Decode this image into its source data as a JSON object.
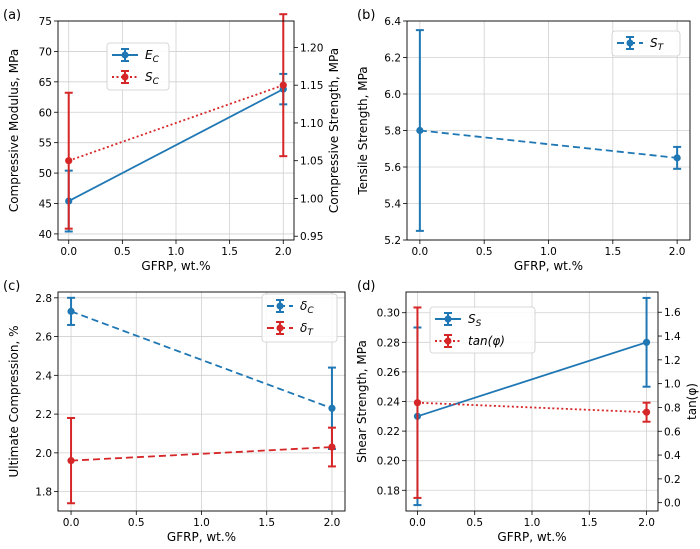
{
  "figure": {
    "background": "#ffffff"
  },
  "colors": {
    "blue": "#1f77b4",
    "red": "#d62728",
    "grid": "#d0d0d0"
  },
  "chart_data": [
    {
      "id": "a",
      "panel_label": "(a)",
      "type": "line",
      "xlabel": "GFRP, wt.%",
      "xlim": [
        -0.1,
        2.1
      ],
      "xticks": [
        0.0,
        0.5,
        1.0,
        1.5,
        2.0
      ],
      "xtick_labels": [
        "0.0",
        "0.5",
        "1.0",
        "1.5",
        "2.0"
      ],
      "ylabel": "Compressive Modulus, MPa",
      "ylim": [
        39,
        75
      ],
      "yticks": [
        40,
        45,
        50,
        55,
        60,
        65,
        70,
        75
      ],
      "ytick_labels": [
        "40",
        "45",
        "50",
        "55",
        "60",
        "65",
        "70",
        "75"
      ],
      "y2label": "Compressive Strength, MPa",
      "y2lim": [
        0.945,
        1.235
      ],
      "y2ticks": [
        0.95,
        1.0,
        1.05,
        1.1,
        1.15,
        1.2
      ],
      "y2tick_labels": [
        "0.95",
        "1.00",
        "1.05",
        "1.10",
        "1.15",
        "1.20"
      ],
      "grid": true,
      "legend_position": "top-center",
      "series": [
        {
          "name": "E_C",
          "legend_main": "E",
          "legend_sub": "C",
          "axis": "left",
          "color": "#1f77b4",
          "style": "solid",
          "x": [
            0,
            2
          ],
          "y": [
            45.4,
            63.8
          ],
          "err": [
            5,
            2.5
          ]
        },
        {
          "name": "S_C",
          "legend_main": "S",
          "legend_sub": "C",
          "axis": "right",
          "color": "#d62728",
          "style": "dotted",
          "x": [
            0,
            2
          ],
          "y": [
            1.05,
            1.15
          ],
          "err": [
            0.09,
            0.094
          ]
        }
      ]
    },
    {
      "id": "b",
      "panel_label": "(b)",
      "type": "line",
      "xlabel": "GFRP, wt.%",
      "xlim": [
        -0.1,
        2.1
      ],
      "xticks": [
        0.0,
        0.5,
        1.0,
        1.5,
        2.0
      ],
      "xtick_labels": [
        "0.0",
        "0.5",
        "1.0",
        "1.5",
        "2.0"
      ],
      "ylabel": "Tensile Strength, MPa",
      "ylim": [
        5.2,
        6.4
      ],
      "yticks": [
        5.2,
        5.4,
        5.6,
        5.8,
        6.0,
        6.2,
        6.4
      ],
      "ytick_labels": [
        "5.2",
        "5.4",
        "5.6",
        "5.8",
        "6.0",
        "6.2",
        "6.4"
      ],
      "grid": true,
      "legend_position": "top-right",
      "series": [
        {
          "name": "S_T",
          "legend_main": "S",
          "legend_sub": "T",
          "axis": "left",
          "color": "#1f77b4",
          "style": "dashed",
          "x": [
            0,
            2
          ],
          "y": [
            5.8,
            5.65
          ],
          "err": [
            0.55,
            0.06
          ]
        }
      ]
    },
    {
      "id": "c",
      "panel_label": "(c)",
      "type": "line",
      "xlabel": "GFRP, wt.%",
      "xlim": [
        -0.1,
        2.1
      ],
      "xticks": [
        0.0,
        0.5,
        1.0,
        1.5,
        2.0
      ],
      "xtick_labels": [
        "0.0",
        "0.5",
        "1.0",
        "1.5",
        "2.0"
      ],
      "ylabel": "Ultimate Compression, %",
      "ylim": [
        1.7,
        2.83
      ],
      "yticks": [
        1.8,
        2.0,
        2.2,
        2.4,
        2.6,
        2.8
      ],
      "ytick_labels": [
        "1.8",
        "2.0",
        "2.2",
        "2.4",
        "2.6",
        "2.8"
      ],
      "grid": true,
      "legend_position": "top-right",
      "series": [
        {
          "name": "δ_C",
          "legend_main": "δ",
          "legend_sub": "C",
          "axis": "left",
          "color": "#1f77b4",
          "style": "dashed",
          "x": [
            0,
            2
          ],
          "y": [
            2.73,
            2.23
          ],
          "err": [
            0.07,
            0.21
          ]
        },
        {
          "name": "δ_T",
          "legend_main": "δ",
          "legend_sub": "T",
          "axis": "left",
          "color": "#d62728",
          "style": "dashed",
          "x": [
            0,
            2
          ],
          "y": [
            1.96,
            2.03
          ],
          "err": [
            0.22,
            0.1
          ]
        }
      ]
    },
    {
      "id": "d",
      "panel_label": "(d)",
      "type": "line",
      "xlabel": "GFRP, wt.%",
      "xlim": [
        -0.1,
        2.1
      ],
      "xticks": [
        0.0,
        0.5,
        1.0,
        1.5,
        2.0
      ],
      "xtick_labels": [
        "0.0",
        "0.5",
        "1.0",
        "1.5",
        "2.0"
      ],
      "ylabel": "Shear Strength, MPa",
      "ylim": [
        0.166,
        0.314
      ],
      "yticks": [
        0.18,
        0.2,
        0.22,
        0.24,
        0.26,
        0.28,
        0.3
      ],
      "ytick_labels": [
        "0.18",
        "0.20",
        "0.22",
        "0.24",
        "0.26",
        "0.28",
        "0.30"
      ],
      "y2label": "tan(φ)",
      "y2lim": [
        -0.07,
        1.77
      ],
      "y2ticks": [
        0.0,
        0.2,
        0.4,
        0.6,
        0.8,
        1.0,
        1.2,
        1.4,
        1.6
      ],
      "y2tick_labels": [
        "0.0",
        "0.2",
        "0.4",
        "0.6",
        "0.8",
        "1.0",
        "1.2",
        "1.4",
        "1.6"
      ],
      "grid": true,
      "legend_position": "top-center",
      "series": [
        {
          "name": "S_S",
          "legend_main": "S",
          "legend_sub": "S",
          "axis": "left",
          "color": "#1f77b4",
          "style": "solid",
          "x": [
            0,
            2
          ],
          "y": [
            0.23,
            0.28
          ],
          "err": [
            0.06,
            0.03
          ]
        },
        {
          "name": "tan(φ)",
          "legend_main": "tan(φ)",
          "legend_sub": "",
          "axis": "right",
          "color": "#d62728",
          "style": "dotted",
          "x": [
            0,
            2
          ],
          "y": [
            0.84,
            0.76
          ],
          "err": [
            0.8,
            0.08
          ]
        }
      ]
    }
  ]
}
